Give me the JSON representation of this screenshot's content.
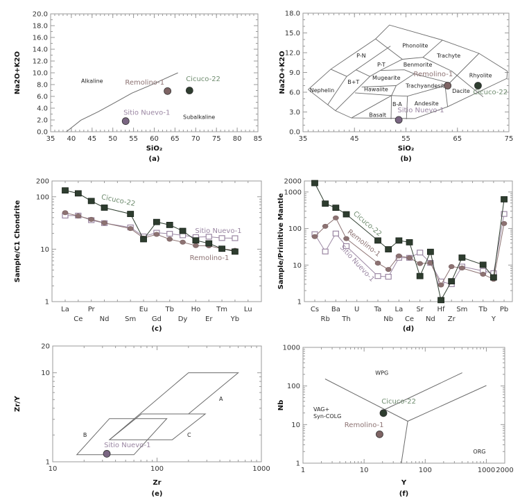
{
  "colors": {
    "cicuco": "#6f8c6f",
    "cicuco_marker": "#2e3d2f",
    "remolino": "#8c7272",
    "remolino_marker": "#7e6464",
    "sitio": "#9a86a2",
    "sitio_marker": "#7a6682",
    "axis": "#999999",
    "field_line": "#6a6a6a"
  },
  "chart_data": [
    {
      "panel_label": "(a)",
      "type": "scatter",
      "xlabel": "SiO₂",
      "ylabel": "Na2O+K2O",
      "xlim": [
        35,
        85
      ],
      "ylim": [
        0,
        20
      ],
      "scale": "linear",
      "grid": false,
      "xticks": [
        "35",
        "40",
        "45",
        "50",
        "55",
        "60",
        "65",
        "70",
        "75",
        "80",
        "85"
      ],
      "yticks": [
        "0.0",
        "2.0",
        "4.0",
        "6.0",
        "8.0",
        "10.0",
        "12.0",
        "14.0",
        "16.0",
        "18.0",
        "20.0"
      ],
      "points": [
        {
          "name": "Remolino-1",
          "x": 63.2,
          "y": 6.9
        },
        {
          "name": "Cicuco-22",
          "x": 68.5,
          "y": 7.0
        },
        {
          "name": "Sitio Nuevo-1",
          "x": 53.1,
          "y": 1.8
        }
      ],
      "boundary": [
        [
          38.8,
          0
        ],
        [
          42.3,
          1.96
        ],
        [
          46.5,
          3.4
        ],
        [
          50.4,
          4.9
        ],
        [
          54.6,
          6.55
        ],
        [
          58.8,
          7.8
        ],
        [
          65.7,
          10
        ]
      ],
      "field_labels": [
        "Alkaline",
        "Subalkaline"
      ]
    },
    {
      "panel_label": "(b)",
      "type": "scatter",
      "xlabel": "SiO₂",
      "ylabel": "Na2O+K2O",
      "xlim": [
        35,
        75
      ],
      "ylim": [
        0,
        18
      ],
      "scale": "linear",
      "grid": false,
      "xticks": [
        "35",
        "45",
        "55",
        "65",
        "75"
      ],
      "yticks": [
        "0.0",
        "3.0",
        "6.0",
        "9.0",
        "12.0",
        "15.0",
        "18.0"
      ],
      "points": [
        {
          "name": "Remolino-1",
          "x": 63.1,
          "y": 7.0
        },
        {
          "name": "Cicuco-22",
          "x": 69.0,
          "y": 7.0
        },
        {
          "name": "Sitio Nuevo-1",
          "x": 53.6,
          "y": 1.8
        }
      ],
      "field_boundaries": [
        [
          [
            36.0,
            6.4
          ],
          [
            40.4,
            9.5
          ],
          [
            49.1,
            14.1
          ],
          [
            51.8,
            16.2
          ],
          [
            62.1,
            13.9
          ],
          [
            69.2,
            11.9
          ],
          [
            74.7,
            9.2
          ],
          [
            74.6,
            8.1
          ],
          [
            63.1,
            3.8
          ],
          [
            56.7,
            2.0
          ],
          [
            44.4,
            2.1
          ],
          [
            41.3,
            3.2
          ],
          [
            36.0,
            6.4
          ]
        ],
        [
          [
            40.4,
            9.5
          ],
          [
            43.5,
            8.4
          ]
        ],
        [
          [
            43.5,
            8.4
          ],
          [
            39.8,
            4.1
          ]
        ],
        [
          [
            43.5,
            8.4
          ],
          [
            45.3,
            9.4
          ],
          [
            52.0,
            13.0
          ]
        ],
        [
          [
            49.1,
            14.1
          ],
          [
            54.3,
            11.0
          ]
        ],
        [
          [
            45.3,
            9.4
          ],
          [
            48.0,
            8.4
          ],
          [
            41.3,
            3.2
          ]
        ],
        [
          [
            48.0,
            8.4
          ],
          [
            50.0,
            9.3
          ],
          [
            54.3,
            11.0
          ],
          [
            58.3,
            11.3
          ],
          [
            62.1,
            13.9
          ]
        ],
        [
          [
            58.3,
            11.3
          ],
          [
            63.9,
            9.2
          ],
          [
            70.0,
            5.3
          ]
        ],
        [
          [
            69.2,
            11.9
          ],
          [
            63.1,
            7.1
          ]
        ],
        [
          [
            50.0,
            9.3
          ],
          [
            54.7,
            9.4
          ],
          [
            56.6,
            8.8
          ],
          [
            63.5,
            7.4
          ]
        ],
        [
          [
            56.6,
            8.8
          ],
          [
            53.1,
            7.0
          ],
          [
            52.2,
            5.5
          ]
        ],
        [
          [
            46.4,
            6.8
          ],
          [
            53.1,
            7.0
          ]
        ],
        [
          [
            45.1,
            5.9
          ],
          [
            52.2,
            5.5
          ]
        ],
        [
          [
            52.2,
            5.5
          ],
          [
            44.4,
            2.1
          ]
        ],
        [
          [
            52.2,
            5.5
          ],
          [
            52.1,
            1.9
          ]
        ],
        [
          [
            52.2,
            5.5
          ],
          [
            55.3,
            5.4
          ],
          [
            62.6,
            7.0
          ]
        ],
        [
          [
            55.3,
            5.4
          ],
          [
            55.1,
            1.9
          ]
        ],
        [
          [
            62.6,
            7.0
          ],
          [
            63.1,
            3.8
          ]
        ]
      ],
      "field_labels": [
        "Phonolite",
        "P-N",
        "P-T",
        "Trachyte",
        "Benmorite",
        "B+T",
        "Mugearite",
        "Rhyolite",
        "Trachyandesit",
        "Nephelin",
        "Hawaiite",
        "Dacite",
        "B-A",
        "Andesite",
        "Basalt"
      ]
    },
    {
      "panel_label": "(c)",
      "type": "line",
      "ylabel": "Sample/C1 Chondrite",
      "yscale": "log",
      "ylim": [
        1,
        200
      ],
      "yticks": [
        "1",
        "10",
        "100",
        "200"
      ],
      "categories": [
        "La",
        "Ce",
        "Pr",
        "Nd",
        "",
        "Sm",
        "Eu",
        "Gd",
        "Tb",
        "Dy",
        "Ho",
        "Er",
        "Tm",
        "Yb",
        "Lu"
      ],
      "series": [
        {
          "name": "Sitio Nuevo-1",
          "marker": "open-square",
          "values": [
            43.7,
            43.7,
            35.8,
            31.4,
            null,
            26,
            17.5,
            20.6,
            19.7,
            18.4,
            17,
            17.3,
            16.3,
            16.2,
            null
          ]
        },
        {
          "name": "Remolino-1",
          "marker": "circle",
          "values": [
            49.6,
            43,
            37,
            31.7,
            null,
            24.7,
            16.3,
            19.2,
            15.5,
            13.6,
            11.7,
            11.6,
            10.2,
            9.5,
            null
          ]
        },
        {
          "name": "Cicuco-22",
          "marker": "filled-square",
          "values": [
            132,
            116,
            83,
            62,
            null,
            47,
            15.5,
            33,
            29,
            22.3,
            14.7,
            12.9,
            10.2,
            9.0,
            null
          ]
        }
      ]
    },
    {
      "panel_label": "(d)",
      "type": "line",
      "ylabel": "Sample/Primitive Mantle",
      "yscale": "log",
      "ylim": [
        1,
        2000
      ],
      "yticks": [
        "1",
        "10",
        "100",
        "1000",
        "2000"
      ],
      "categories": [
        "Cs",
        "Rb",
        "Ba",
        "Th",
        "U",
        "",
        "Ta",
        "Nb",
        "La",
        "Ce",
        "Sr",
        "Nd",
        "Hf",
        "Zr",
        "Sm",
        "",
        "Tb",
        "Y",
        "Pb"
      ],
      "series": [
        {
          "name": "Sitio Nuevo-1",
          "marker": "open-square",
          "values": [
            70,
            23.5,
            73,
            33,
            null,
            null,
            5,
            4.8,
            15.8,
            15.8,
            22,
            11.5,
            3.55,
            3.0,
            9.1,
            null,
            6.9,
            6.0,
            250
          ]
        },
        {
          "name": "Remolino-1",
          "marker": "circle",
          "values": [
            60,
            115,
            195,
            53,
            null,
            null,
            11.3,
            7.6,
            17.8,
            15.8,
            11,
            11.5,
            2.85,
            9.1,
            8.3,
            null,
            5.6,
            4.1,
            137
          ]
        },
        {
          "name": "Cicuco-22",
          "marker": "filled-square",
          "values": [
            1750,
            480,
            370,
            245,
            null,
            null,
            47,
            27,
            47,
            42,
            5,
            23,
            1.1,
            3.6,
            16,
            null,
            10.2,
            4.6,
            630
          ]
        }
      ]
    },
    {
      "panel_label": "(e)",
      "type": "scatter",
      "xlabel": "Zr",
      "ylabel": "Zr/Y",
      "xscale": "log",
      "yscale": "log",
      "xlim": [
        10,
        1000
      ],
      "ylim": [
        1,
        20
      ],
      "xticks": [
        "10",
        "100",
        "1000"
      ],
      "yticks": [
        "1",
        "10",
        "20"
      ],
      "points": [
        {
          "name": "Sitio Nuevo-1",
          "x": 33,
          "y": 1.23
        }
      ],
      "fields": [
        {
          "label": "A",
          "closed": false,
          "vertices": [
            [
              35,
              1.77
            ],
            [
              200,
              10
            ],
            [
              600,
              10
            ],
            [
              200,
              3.45
            ]
          ]
        },
        {
          "label": "B",
          "closed": true,
          "vertices": [
            [
              17,
              1.2
            ],
            [
              35,
              3.06
            ],
            [
              124,
              3.06
            ],
            [
              60,
              1.2
            ]
          ]
        },
        {
          "label": "C",
          "closed": true,
          "vertices": [
            [
              35,
              1.77
            ],
            [
              71,
              3.45
            ],
            [
              290,
              3.45
            ],
            [
              140,
              1.77
            ]
          ]
        }
      ]
    },
    {
      "panel_label": "(f)",
      "type": "scatter",
      "xlabel": "Y",
      "ylabel": "Nb",
      "xscale": "log",
      "yscale": "log",
      "xlim": [
        1,
        2000
      ],
      "ylim": [
        1,
        1000
      ],
      "xticks": [
        "1",
        "10",
        "100",
        "1000",
        "2000"
      ],
      "yticks": [
        "1",
        "10",
        "100",
        "1000"
      ],
      "points": [
        {
          "name": "Cicuco-22",
          "x": 20.7,
          "y": 19.8
        },
        {
          "name": "Remolino-1",
          "x": 17.9,
          "y": 5.6
        }
      ],
      "boundaries": [
        [
          [
            2.3,
            152
          ],
          [
            51.8,
            12.2
          ]
        ],
        [
          [
            51.8,
            12.2
          ],
          [
            40.6,
            1
          ]
        ],
        [
          [
            20.7,
            23.7
          ],
          [
            403,
            220
          ]
        ],
        [
          [
            51.8,
            12.2
          ],
          [
            1000,
            103
          ]
        ]
      ],
      "field_labels": [
        "WPG",
        "VAG+",
        "Syn-COLG",
        "ORG"
      ]
    }
  ]
}
